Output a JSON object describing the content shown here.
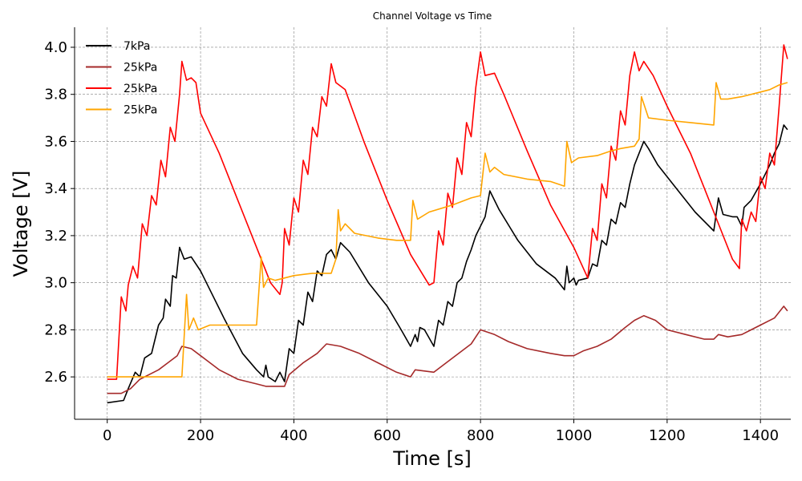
{
  "chart_data": {
    "type": "line",
    "title": "Channel Voltage vs Time",
    "xlabel": "Time [s]",
    "ylabel": "Voltage [V]",
    "xlim": [
      -70,
      1465
    ],
    "ylim": [
      2.42,
      4.085
    ],
    "xticks": [
      0,
      200,
      400,
      600,
      800,
      1000,
      1200,
      1400
    ],
    "yticks": [
      2.6,
      2.8,
      3.0,
      3.2,
      3.4,
      3.6,
      3.8,
      4.0
    ],
    "xtick_labels": [
      "0",
      "200",
      "400",
      "600",
      "800",
      "1000",
      "1200",
      "1400"
    ],
    "ytick_labels": [
      "2.6",
      "2.8",
      "3.0",
      "3.2",
      "3.4",
      "3.6",
      "3.8",
      "4.0"
    ],
    "grid": true,
    "legend_position": "top-left",
    "series": [
      {
        "name": "7kPa",
        "color": "#000000",
        "points": [
          [
            0,
            2.49
          ],
          [
            35,
            2.5
          ],
          [
            45,
            2.55
          ],
          [
            60,
            2.62
          ],
          [
            70,
            2.6
          ],
          [
            80,
            2.68
          ],
          [
            95,
            2.7
          ],
          [
            100,
            2.74
          ],
          [
            110,
            2.82
          ],
          [
            120,
            2.85
          ],
          [
            125,
            2.93
          ],
          [
            135,
            2.9
          ],
          [
            140,
            3.03
          ],
          [
            148,
            3.02
          ],
          [
            155,
            3.15
          ],
          [
            165,
            3.1
          ],
          [
            180,
            3.11
          ],
          [
            200,
            3.05
          ],
          [
            250,
            2.85
          ],
          [
            290,
            2.7
          ],
          [
            320,
            2.63
          ],
          [
            335,
            2.6
          ],
          [
            340,
            2.65
          ],
          [
            345,
            2.6
          ],
          [
            360,
            2.58
          ],
          [
            370,
            2.62
          ],
          [
            380,
            2.58
          ],
          [
            390,
            2.72
          ],
          [
            400,
            2.7
          ],
          [
            410,
            2.84
          ],
          [
            420,
            2.82
          ],
          [
            430,
            2.96
          ],
          [
            440,
            2.92
          ],
          [
            450,
            3.05
          ],
          [
            460,
            3.03
          ],
          [
            470,
            3.12
          ],
          [
            480,
            3.14
          ],
          [
            490,
            3.1
          ],
          [
            500,
            3.17
          ],
          [
            520,
            3.13
          ],
          [
            560,
            3.0
          ],
          [
            600,
            2.9
          ],
          [
            630,
            2.8
          ],
          [
            650,
            2.73
          ],
          [
            660,
            2.78
          ],
          [
            665,
            2.75
          ],
          [
            670,
            2.81
          ],
          [
            680,
            2.8
          ],
          [
            700,
            2.73
          ],
          [
            710,
            2.84
          ],
          [
            720,
            2.82
          ],
          [
            730,
            2.92
          ],
          [
            740,
            2.9
          ],
          [
            750,
            3.0
          ],
          [
            760,
            3.02
          ],
          [
            770,
            3.09
          ],
          [
            780,
            3.14
          ],
          [
            790,
            3.2
          ],
          [
            800,
            3.24
          ],
          [
            810,
            3.28
          ],
          [
            820,
            3.39
          ],
          [
            830,
            3.35
          ],
          [
            840,
            3.31
          ],
          [
            880,
            3.18
          ],
          [
            920,
            3.08
          ],
          [
            960,
            3.02
          ],
          [
            980,
            2.97
          ],
          [
            985,
            3.07
          ],
          [
            990,
            3.0
          ],
          [
            1000,
            3.02
          ],
          [
            1005,
            2.99
          ],
          [
            1010,
            3.01
          ],
          [
            1030,
            3.02
          ],
          [
            1040,
            3.08
          ],
          [
            1050,
            3.07
          ],
          [
            1060,
            3.18
          ],
          [
            1070,
            3.16
          ],
          [
            1080,
            3.27
          ],
          [
            1090,
            3.25
          ],
          [
            1100,
            3.34
          ],
          [
            1110,
            3.32
          ],
          [
            1120,
            3.42
          ],
          [
            1130,
            3.5
          ],
          [
            1140,
            3.55
          ],
          [
            1150,
            3.6
          ],
          [
            1160,
            3.57
          ],
          [
            1180,
            3.5
          ],
          [
            1220,
            3.4
          ],
          [
            1260,
            3.3
          ],
          [
            1300,
            3.22
          ],
          [
            1310,
            3.36
          ],
          [
            1320,
            3.29
          ],
          [
            1340,
            3.28
          ],
          [
            1350,
            3.28
          ],
          [
            1360,
            3.24
          ],
          [
            1365,
            3.32
          ],
          [
            1380,
            3.35
          ],
          [
            1400,
            3.42
          ],
          [
            1420,
            3.5
          ],
          [
            1430,
            3.55
          ],
          [
            1440,
            3.59
          ],
          [
            1450,
            3.67
          ],
          [
            1458,
            3.65
          ]
        ]
      },
      {
        "name": "25kPa",
        "color": "#a52a2a",
        "points": [
          [
            0,
            2.53
          ],
          [
            30,
            2.53
          ],
          [
            50,
            2.55
          ],
          [
            70,
            2.59
          ],
          [
            90,
            2.61
          ],
          [
            110,
            2.63
          ],
          [
            130,
            2.66
          ],
          [
            150,
            2.69
          ],
          [
            160,
            2.73
          ],
          [
            180,
            2.72
          ],
          [
            200,
            2.69
          ],
          [
            240,
            2.63
          ],
          [
            280,
            2.59
          ],
          [
            320,
            2.57
          ],
          [
            340,
            2.56
          ],
          [
            380,
            2.56
          ],
          [
            390,
            2.61
          ],
          [
            420,
            2.66
          ],
          [
            450,
            2.7
          ],
          [
            470,
            2.74
          ],
          [
            500,
            2.73
          ],
          [
            540,
            2.7
          ],
          [
            580,
            2.66
          ],
          [
            620,
            2.62
          ],
          [
            650,
            2.6
          ],
          [
            660,
            2.63
          ],
          [
            700,
            2.62
          ],
          [
            740,
            2.68
          ],
          [
            780,
            2.74
          ],
          [
            800,
            2.8
          ],
          [
            830,
            2.78
          ],
          [
            860,
            2.75
          ],
          [
            900,
            2.72
          ],
          [
            950,
            2.7
          ],
          [
            980,
            2.69
          ],
          [
            1000,
            2.69
          ],
          [
            1020,
            2.71
          ],
          [
            1050,
            2.73
          ],
          [
            1080,
            2.76
          ],
          [
            1110,
            2.81
          ],
          [
            1130,
            2.84
          ],
          [
            1150,
            2.86
          ],
          [
            1175,
            2.84
          ],
          [
            1200,
            2.8
          ],
          [
            1240,
            2.78
          ],
          [
            1280,
            2.76
          ],
          [
            1300,
            2.76
          ],
          [
            1310,
            2.78
          ],
          [
            1330,
            2.77
          ],
          [
            1360,
            2.78
          ],
          [
            1380,
            2.8
          ],
          [
            1400,
            2.82
          ],
          [
            1430,
            2.85
          ],
          [
            1450,
            2.9
          ],
          [
            1458,
            2.88
          ]
        ]
      },
      {
        "name": "25kPa",
        "color": "#ff0000",
        "points": [
          [
            0,
            2.59
          ],
          [
            20,
            2.59
          ],
          [
            30,
            2.94
          ],
          [
            40,
            2.88
          ],
          [
            45,
            2.99
          ],
          [
            55,
            3.07
          ],
          [
            65,
            3.02
          ],
          [
            75,
            3.25
          ],
          [
            85,
            3.2
          ],
          [
            95,
            3.37
          ],
          [
            105,
            3.33
          ],
          [
            115,
            3.52
          ],
          [
            125,
            3.45
          ],
          [
            135,
            3.66
          ],
          [
            145,
            3.6
          ],
          [
            155,
            3.8
          ],
          [
            160,
            3.94
          ],
          [
            170,
            3.86
          ],
          [
            180,
            3.87
          ],
          [
            190,
            3.85
          ],
          [
            200,
            3.72
          ],
          [
            240,
            3.55
          ],
          [
            280,
            3.35
          ],
          [
            320,
            3.15
          ],
          [
            350,
            3.0
          ],
          [
            370,
            2.95
          ],
          [
            375,
            3.0
          ],
          [
            380,
            3.23
          ],
          [
            390,
            3.16
          ],
          [
            400,
            3.36
          ],
          [
            410,
            3.3
          ],
          [
            420,
            3.52
          ],
          [
            430,
            3.46
          ],
          [
            440,
            3.66
          ],
          [
            450,
            3.62
          ],
          [
            460,
            3.79
          ],
          [
            470,
            3.75
          ],
          [
            480,
            3.93
          ],
          [
            490,
            3.85
          ],
          [
            510,
            3.82
          ],
          [
            550,
            3.6
          ],
          [
            600,
            3.35
          ],
          [
            650,
            3.12
          ],
          [
            690,
            2.99
          ],
          [
            700,
            3.0
          ],
          [
            710,
            3.22
          ],
          [
            720,
            3.16
          ],
          [
            730,
            3.38
          ],
          [
            740,
            3.32
          ],
          [
            750,
            3.53
          ],
          [
            760,
            3.46
          ],
          [
            770,
            3.68
          ],
          [
            780,
            3.62
          ],
          [
            790,
            3.83
          ],
          [
            800,
            3.98
          ],
          [
            810,
            3.88
          ],
          [
            830,
            3.89
          ],
          [
            850,
            3.8
          ],
          [
            900,
            3.56
          ],
          [
            950,
            3.33
          ],
          [
            1000,
            3.15
          ],
          [
            1030,
            3.02
          ],
          [
            1040,
            3.23
          ],
          [
            1050,
            3.18
          ],
          [
            1060,
            3.42
          ],
          [
            1070,
            3.36
          ],
          [
            1080,
            3.58
          ],
          [
            1090,
            3.52
          ],
          [
            1100,
            3.73
          ],
          [
            1110,
            3.67
          ],
          [
            1120,
            3.88
          ],
          [
            1130,
            3.98
          ],
          [
            1140,
            3.9
          ],
          [
            1150,
            3.94
          ],
          [
            1170,
            3.88
          ],
          [
            1200,
            3.75
          ],
          [
            1250,
            3.55
          ],
          [
            1300,
            3.3
          ],
          [
            1340,
            3.1
          ],
          [
            1355,
            3.06
          ],
          [
            1360,
            3.27
          ],
          [
            1370,
            3.22
          ],
          [
            1380,
            3.3
          ],
          [
            1390,
            3.26
          ],
          [
            1400,
            3.45
          ],
          [
            1410,
            3.4
          ],
          [
            1420,
            3.55
          ],
          [
            1430,
            3.5
          ],
          [
            1440,
            3.75
          ],
          [
            1450,
            4.01
          ],
          [
            1458,
            3.95
          ]
        ]
      },
      {
        "name": "25kPa",
        "color": "#ffa500",
        "points": [
          [
            0,
            2.6
          ],
          [
            30,
            2.6
          ],
          [
            60,
            2.6
          ],
          [
            100,
            2.6
          ],
          [
            140,
            2.6
          ],
          [
            160,
            2.6
          ],
          [
            170,
            2.95
          ],
          [
            175,
            2.8
          ],
          [
            185,
            2.85
          ],
          [
            195,
            2.8
          ],
          [
            220,
            2.82
          ],
          [
            270,
            2.82
          ],
          [
            320,
            2.82
          ],
          [
            330,
            3.11
          ],
          [
            335,
            2.98
          ],
          [
            345,
            3.02
          ],
          [
            360,
            3.01
          ],
          [
            400,
            3.03
          ],
          [
            440,
            3.04
          ],
          [
            480,
            3.04
          ],
          [
            490,
            3.1
          ],
          [
            495,
            3.31
          ],
          [
            500,
            3.22
          ],
          [
            510,
            3.25
          ],
          [
            530,
            3.21
          ],
          [
            580,
            3.19
          ],
          [
            620,
            3.18
          ],
          [
            650,
            3.18
          ],
          [
            655,
            3.35
          ],
          [
            665,
            3.27
          ],
          [
            690,
            3.3
          ],
          [
            740,
            3.33
          ],
          [
            780,
            3.36
          ],
          [
            800,
            3.37
          ],
          [
            810,
            3.55
          ],
          [
            820,
            3.47
          ],
          [
            830,
            3.49
          ],
          [
            850,
            3.46
          ],
          [
            900,
            3.44
          ],
          [
            950,
            3.43
          ],
          [
            980,
            3.41
          ],
          [
            985,
            3.6
          ],
          [
            995,
            3.51
          ],
          [
            1010,
            3.53
          ],
          [
            1050,
            3.54
          ],
          [
            1080,
            3.56
          ],
          [
            1100,
            3.57
          ],
          [
            1130,
            3.58
          ],
          [
            1140,
            3.61
          ],
          [
            1145,
            3.79
          ],
          [
            1160,
            3.7
          ],
          [
            1200,
            3.69
          ],
          [
            1250,
            3.68
          ],
          [
            1300,
            3.67
          ],
          [
            1305,
            3.85
          ],
          [
            1315,
            3.78
          ],
          [
            1330,
            3.78
          ],
          [
            1360,
            3.79
          ],
          [
            1400,
            3.81
          ],
          [
            1420,
            3.82
          ],
          [
            1440,
            3.84
          ],
          [
            1458,
            3.85
          ]
        ]
      }
    ]
  }
}
